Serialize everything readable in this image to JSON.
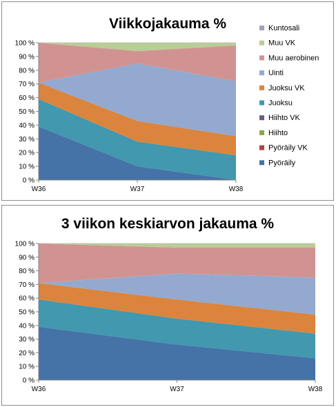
{
  "chart_data": [
    {
      "type": "area",
      "stacked": true,
      "title": "Viikkojakauma %",
      "categories": [
        "W36",
        "W37",
        "W38"
      ],
      "ylim": [
        0,
        100
      ],
      "yticks": [
        "0 %",
        "10 %",
        "20 %",
        "30 %",
        "40 %",
        "50 %",
        "60 %",
        "70 %",
        "80 %",
        "90 %",
        "100 %"
      ],
      "legend_position": "right",
      "series": [
        {
          "name": "Pyöräily",
          "color": "#4572a7",
          "values": [
            39,
            10,
            0
          ]
        },
        {
          "name": "Pyöräily VK",
          "color": "#aa4643",
          "values": [
            0,
            0,
            0
          ]
        },
        {
          "name": "Hiihto",
          "color": "#89a54e",
          "values": [
            0,
            0,
            0
          ]
        },
        {
          "name": "Hiihto VK",
          "color": "#71588f",
          "values": [
            0,
            0,
            0
          ]
        },
        {
          "name": "Juoksu",
          "color": "#4198af",
          "values": [
            20,
            18,
            18
          ]
        },
        {
          "name": "Juoksu VK",
          "color": "#db843d",
          "values": [
            12,
            15,
            14
          ]
        },
        {
          "name": "Uinti",
          "color": "#93a9cf",
          "values": [
            0,
            42,
            40
          ]
        },
        {
          "name": "Muu aerobinen",
          "color": "#d19392",
          "values": [
            29,
            9,
            26
          ]
        },
        {
          "name": "Muu VK",
          "color": "#b9cd96",
          "values": [
            0,
            6,
            2
          ]
        },
        {
          "name": "Kuntosali",
          "color": "#a99bbd",
          "values": [
            0,
            0,
            0
          ]
        }
      ]
    },
    {
      "type": "area",
      "stacked": true,
      "title": "3 viikon keskiarvon jakauma %",
      "categories": [
        "W36",
        "W37",
        "W38"
      ],
      "ylim": [
        0,
        100
      ],
      "yticks": [
        "0 %",
        "10 %",
        "20 %",
        "30 %",
        "40 %",
        "50 %",
        "60 %",
        "70 %",
        "80 %",
        "90 %",
        "100 %"
      ],
      "series": [
        {
          "name": "Pyöräily",
          "color": "#4572a7",
          "values": [
            39,
            26,
            16
          ]
        },
        {
          "name": "Pyöräily VK",
          "color": "#aa4643",
          "values": [
            0,
            0,
            0
          ]
        },
        {
          "name": "Hiihto",
          "color": "#89a54e",
          "values": [
            0,
            0,
            0
          ]
        },
        {
          "name": "Hiihto VK",
          "color": "#71588f",
          "values": [
            0,
            0,
            0
          ]
        },
        {
          "name": "Juoksu",
          "color": "#4198af",
          "values": [
            20,
            19,
            18
          ]
        },
        {
          "name": "Juoksu VK",
          "color": "#db843d",
          "values": [
            12,
            14,
            14
          ]
        },
        {
          "name": "Uinti",
          "color": "#93a9cf",
          "values": [
            0,
            19,
            27
          ]
        },
        {
          "name": "Muu aerobinen",
          "color": "#d19392",
          "values": [
            29,
            19,
            22
          ]
        },
        {
          "name": "Muu VK",
          "color": "#b9cd96",
          "values": [
            0,
            3,
            3
          ]
        },
        {
          "name": "Kuntosali",
          "color": "#a99bbd",
          "values": [
            0,
            0,
            0
          ]
        }
      ]
    }
  ]
}
